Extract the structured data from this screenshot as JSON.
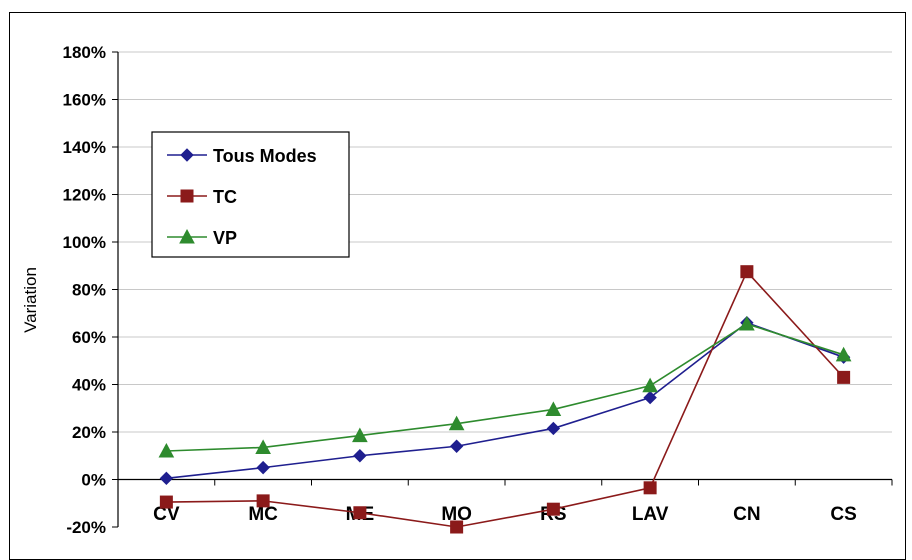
{
  "chart_data": {
    "type": "line",
    "ylabel": "Variation",
    "xlabel": "",
    "title": "",
    "categories": [
      "CV",
      "MC",
      "ME",
      "MO",
      "RS",
      "LAV",
      "CN",
      "CS"
    ],
    "ylim": [
      -20,
      180
    ],
    "yticks": [
      -20,
      0,
      20,
      40,
      60,
      80,
      100,
      120,
      140,
      160,
      180
    ],
    "ytick_labels": [
      "-20%",
      "0%",
      "20%",
      "40%",
      "60%",
      "80%",
      "100%",
      "120%",
      "140%",
      "160%",
      "180%"
    ],
    "grid": true,
    "legend_position": "top-left",
    "series": [
      {
        "name": "Tous Modes",
        "color": "#1f1f8f",
        "marker": "diamond",
        "values": [
          0.5,
          5,
          10,
          14,
          21.5,
          34.5,
          66,
          51.5
        ]
      },
      {
        "name": "TC",
        "color": "#8b1a1a",
        "marker": "square",
        "values": [
          -9.5,
          -9,
          -14,
          -20,
          -12.5,
          -3.5,
          87.5,
          43
        ]
      },
      {
        "name": "VP",
        "color": "#2e8b2e",
        "marker": "triangle",
        "values": [
          12,
          13.5,
          18.5,
          23.5,
          29.5,
          39.5,
          65.5,
          52.5
        ]
      }
    ]
  }
}
